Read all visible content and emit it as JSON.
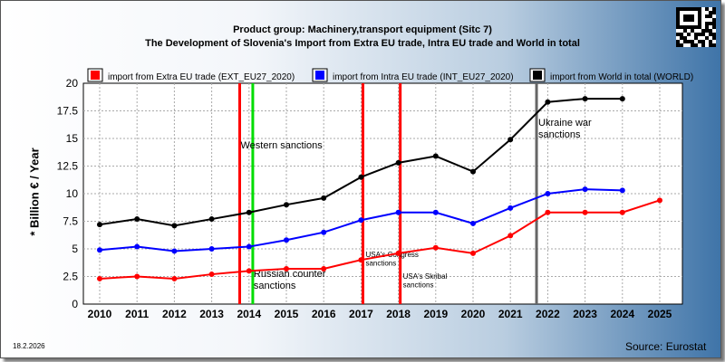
{
  "header": {
    "title_line1": "Product group: Machinery,transport equipment (Sitc 7)",
    "title_line2": "The Development of Slovenia's Import from Extra EU trade, Intra EU trade and World in total"
  },
  "footer": {
    "date": "18.2.2026",
    "source": "Source: Eurostat"
  },
  "chart_data": {
    "type": "line",
    "ylabel": "* Billion € / Year",
    "xlabel": "",
    "ylim": [
      0,
      20
    ],
    "yticks": [
      "0",
      "2.5",
      "5",
      "7.5",
      "10",
      "12.5",
      "15",
      "17.5",
      "20"
    ],
    "x": [
      "2010",
      "2011",
      "2012",
      "2013",
      "2014",
      "2015",
      "2016",
      "2017",
      "2018",
      "2019",
      "2020",
      "2021",
      "2022",
      "2023",
      "2024",
      "2025"
    ],
    "grid": true,
    "legend_position": "top",
    "series": [
      {
        "name": "import from Extra EU trade (EXT_EU27_2020)",
        "color": "#ff0000",
        "values": [
          2.3,
          2.5,
          2.3,
          2.7,
          3.0,
          3.2,
          3.2,
          4.0,
          4.6,
          5.1,
          4.6,
          6.2,
          8.3,
          8.3,
          8.3,
          9.4
        ]
      },
      {
        "name": "import from Intra EU trade (INT_EU27_2020)",
        "color": "#0000ff",
        "values": [
          4.9,
          5.2,
          4.8,
          5.0,
          5.2,
          5.8,
          6.5,
          7.6,
          8.3,
          8.3,
          7.3,
          8.7,
          10.0,
          10.4,
          10.3,
          null
        ]
      },
      {
        "name": "import from World in total (WORLD)",
        "color": "#000000",
        "values": [
          7.2,
          7.7,
          7.1,
          7.7,
          8.3,
          9.0,
          9.6,
          11.5,
          12.8,
          13.4,
          12.0,
          14.9,
          18.3,
          18.6,
          18.6,
          null
        ]
      }
    ],
    "events": [
      {
        "label": "Western sanctions",
        "year": 2013.75,
        "color": "#ff0000"
      },
      {
        "label": "Russian counter sanctions",
        "year": 2014.1,
        "color": "#00dd00"
      },
      {
        "label": "USA's Congress sanctions",
        "year": 2017.05,
        "color": "#ff0000"
      },
      {
        "label": "USA's Skribal sanctions",
        "year": 2018.05,
        "color": "#ff0000"
      },
      {
        "label": "Ukraine war sanctions",
        "year": 2021.7,
        "color": "#666666"
      }
    ]
  }
}
